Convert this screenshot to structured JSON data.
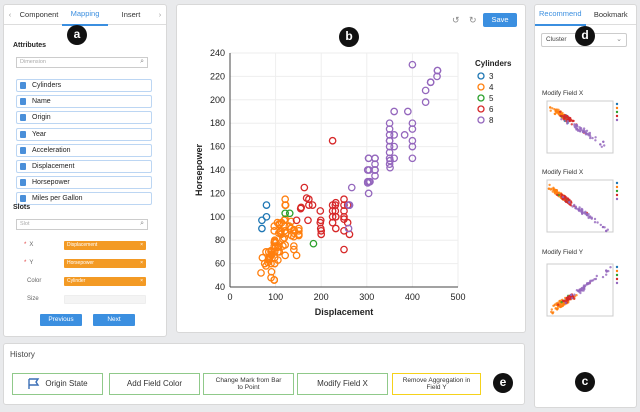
{
  "left_panel": {
    "tabs": [
      "Component",
      "Mapping",
      "Insert"
    ],
    "tab_arrow_left": "‹",
    "tab_arrow_right": "›",
    "attributes_title": "Attributes",
    "dimension_placeholder": "Dimension",
    "attributes": [
      "Cylinders",
      "Name",
      "Origin",
      "Year",
      "Acceleration",
      "Displacement",
      "Horsepower",
      "Miles per Gallon"
    ],
    "slots_title": "Slots",
    "slot_placeholder": "Slot",
    "slots": [
      {
        "label": "X",
        "required": "*",
        "value": "Displacement"
      },
      {
        "label": "Y",
        "required": "*",
        "value": "Horsepower"
      },
      {
        "label": "Color",
        "required": "",
        "value": "Cylinder"
      },
      {
        "label": "Size",
        "required": "",
        "value": ""
      }
    ],
    "slot_remove": "×",
    "previous_label": "Previous",
    "next_label": "Next"
  },
  "badges": {
    "a": "a",
    "b": "b",
    "c": "c",
    "d": "d",
    "e": "e"
  },
  "center_panel": {
    "save_label": "Save",
    "undo_glyph": "↺",
    "redo_glyph": "↻"
  },
  "right_panel": {
    "tabs": [
      "Recommend",
      "Bookmark"
    ],
    "cluster_select": "Cluster",
    "recommendations": [
      "Modify Field X",
      "Modify Field X",
      "Modify Field Y"
    ]
  },
  "history": {
    "title": "History",
    "steps": [
      "Origin State",
      "Add Field Color",
      "Change Mark from Bar to Point",
      "Modify Field X",
      "Remove Aggregation in Field Y"
    ]
  },
  "colors": {
    "accent": "#3b8fe0",
    "slot_orange": "#f39a24",
    "cyl3": "#1f77b4",
    "cyl4": "#ff7f0e",
    "cyl5": "#2ca02c",
    "cyl6": "#d62728",
    "cyl8": "#9467bd"
  },
  "chart_data": {
    "type": "scatter",
    "xlabel": "Displacement",
    "ylabel": "Horsepower",
    "xlim": [
      0,
      500
    ],
    "ylim": [
      40,
      240
    ],
    "xticks": [
      0,
      100,
      200,
      300,
      400,
      500
    ],
    "yticks": [
      40,
      60,
      80,
      100,
      120,
      140,
      160,
      180,
      200,
      220,
      240
    ],
    "legend_title": "Cylinders",
    "legend_position": "right",
    "series": [
      {
        "name": "3",
        "color": "#1f77b4",
        "x": [
          70,
          70,
          80,
          80
        ],
        "y": [
          90,
          97,
          100,
          110
        ]
      },
      {
        "name": "4",
        "color": "#ff7f0e",
        "x": [
          68,
          71,
          76,
          79,
          83,
          85,
          86,
          88,
          90,
          91,
          91,
          97,
          97,
          97,
          98,
          98,
          98,
          100,
          101,
          105,
          105,
          105,
          107,
          107,
          108,
          108,
          110,
          112,
          113,
          116,
          119,
          120,
          120,
          121,
          121,
          121,
          122,
          130,
          134,
          135,
          140,
          140,
          140,
          141,
          146,
          151,
          151,
          156,
          97,
          85,
          90,
          112,
          121,
          140,
          151,
          134,
          98,
          79,
          104,
          116,
          90,
          97,
          108,
          119,
          122,
          140,
          151,
          135,
          121,
          97,
          91,
          90,
          86,
          98
        ],
        "y": [
          52,
          65,
          60,
          70,
          61,
          70,
          65,
          66,
          70,
          53,
          68,
          75,
          78,
          88,
          60,
          65,
          70,
          75,
          78,
          70,
          63,
          74,
          75,
          86,
          93,
          94,
          87,
          88,
          95,
          75,
          97,
          88,
          92,
          67,
          98,
          110,
          110,
          92,
          90,
          84,
          72,
          83,
          86,
          88,
          67,
          84,
          90,
          108,
          46,
          63,
          48,
          85,
          76,
          75,
          88,
          96,
          79,
          58,
          95,
          81,
          71,
          46,
          70,
          82,
          86,
          89,
          85,
          84,
          115,
          92,
          67,
          60,
          64,
          80
        ]
      },
      {
        "name": "5",
        "color": "#2ca02c",
        "x": [
          121,
          131,
          183
        ],
        "y": [
          103,
          103,
          77
        ]
      },
      {
        "name": "6",
        "color": "#d62728",
        "x": [
          146,
          155,
          156,
          163,
          168,
          171,
          173,
          181,
          198,
          199,
          200,
          225,
          225,
          231,
          232,
          250,
          250,
          250,
          258,
          262,
          199,
          232,
          225,
          250,
          232,
          250,
          258,
          173,
          198,
          225,
          250,
          200,
          231,
          225,
          232,
          250
        ],
        "y": [
          97,
          107,
          108,
          125,
          116,
          97,
          110,
          110,
          95,
          90,
          85,
          105,
          100,
          110,
          100,
          72,
          88,
          98,
          110,
          85,
          97,
          90,
          95,
          105,
          112,
          115,
          95,
          115,
          105,
          110,
          100,
          88,
          105,
          165,
          100,
          110
        ]
      },
      {
        "name": "8",
        "color": "#9467bd",
        "x": [
          260,
          262,
          267,
          302,
          304,
          305,
          307,
          318,
          318,
          318,
          350,
          350,
          350,
          350,
          351,
          360,
          360,
          383,
          390,
          400,
          400,
          429,
          440,
          454,
          455,
          302,
          304,
          350,
          350,
          318,
          360,
          400,
          400,
          351,
          350,
          318,
          305,
          302,
          260,
          262,
          350,
          360,
          400,
          429,
          440,
          455,
          318,
          304,
          350,
          400
        ],
        "y": [
          110,
          110,
          125,
          130,
          150,
          130,
          130,
          140,
          150,
          150,
          145,
          150,
          160,
          165,
          142,
          150,
          170,
          170,
          190,
          150,
          175,
          198,
          215,
          220,
          225,
          140,
          120,
          155,
          180,
          135,
          160,
          160,
          180,
          148,
          175,
          145,
          140,
          129,
          90,
          110,
          170,
          190,
          165,
          208,
          215,
          225,
          140,
          150,
          165,
          230
        ]
      }
    ]
  }
}
